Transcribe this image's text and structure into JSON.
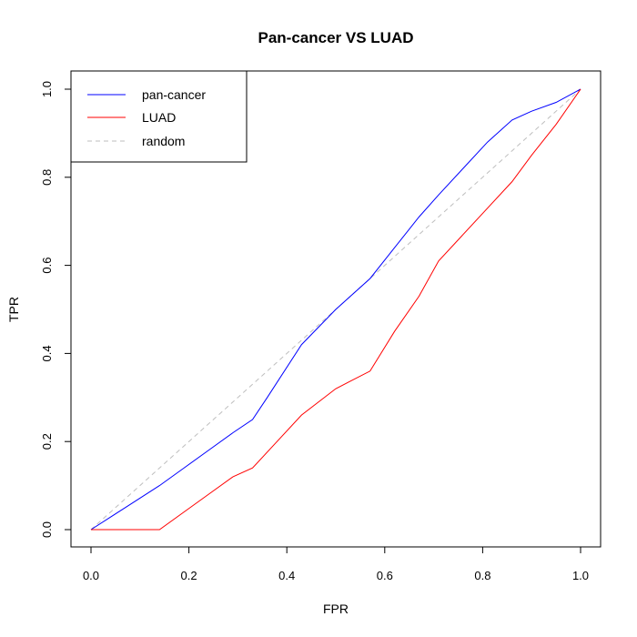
{
  "chart_data": {
    "type": "line",
    "title": "Pan-cancer VS LUAD",
    "xlabel": "FPR",
    "ylabel": "TPR",
    "xlim": [
      0,
      1
    ],
    "ylim": [
      0,
      1
    ],
    "xticks": [
      "0.0",
      "0.2",
      "0.4",
      "0.6",
      "0.8",
      "1.0"
    ],
    "yticks": [
      "0.0",
      "0.2",
      "0.4",
      "0.6",
      "0.8",
      "1.0"
    ],
    "grid": false,
    "legend_position": "top-left",
    "series": [
      {
        "name": "pan-cancer",
        "color": "#0000ff",
        "dash": "solid",
        "x": [
          0.0,
          0.07,
          0.14,
          0.19,
          0.24,
          0.29,
          0.33,
          0.36,
          0.43,
          0.5,
          0.57,
          0.62,
          0.67,
          0.71,
          0.76,
          0.81,
          0.86,
          0.9,
          0.95,
          1.0
        ],
        "y": [
          0.0,
          0.05,
          0.1,
          0.14,
          0.18,
          0.22,
          0.25,
          0.3,
          0.42,
          0.5,
          0.57,
          0.64,
          0.71,
          0.76,
          0.82,
          0.88,
          0.93,
          0.95,
          0.97,
          1.0
        ]
      },
      {
        "name": "LUAD",
        "color": "#ff0000",
        "dash": "solid",
        "x": [
          0.0,
          0.14,
          0.19,
          0.24,
          0.29,
          0.33,
          0.38,
          0.43,
          0.5,
          0.57,
          0.62,
          0.67,
          0.71,
          0.76,
          0.81,
          0.86,
          0.9,
          0.95,
          1.0
        ],
        "y": [
          0.0,
          0.0,
          0.04,
          0.08,
          0.12,
          0.14,
          0.2,
          0.26,
          0.32,
          0.36,
          0.45,
          0.53,
          0.61,
          0.67,
          0.73,
          0.79,
          0.85,
          0.92,
          1.0
        ]
      },
      {
        "name": "random",
        "color": "#bebebe",
        "dash": "dashed",
        "x": [
          0.0,
          1.0
        ],
        "y": [
          0.0,
          1.0
        ]
      }
    ]
  }
}
